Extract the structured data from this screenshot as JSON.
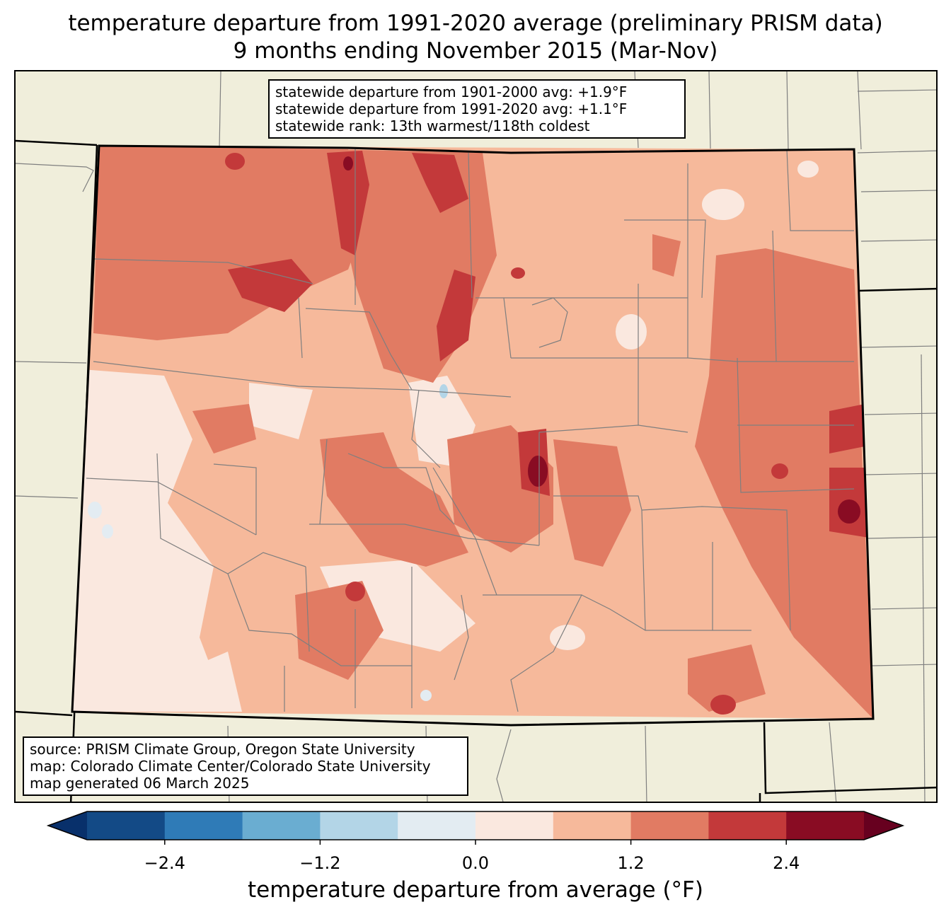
{
  "title": {
    "line1": "temperature departure from 1991-2020 average (preliminary PRISM data)",
    "line2": "9 months ending November 2015 (Mar-Nov)"
  },
  "stats_box": {
    "line1": "statewide departure from 1901-2000 avg: +1.9°F",
    "line2": "statewide departure from 1991-2020 avg: +1.1°F",
    "line3": "statewide rank: 13th warmest/118th coldest"
  },
  "source_box": {
    "line1": "source: PRISM Climate Group, Oregon State University",
    "line2": "map: Colorado Climate Center/Colorado State University",
    "line3": "map generated 06 March 2025"
  },
  "colorbar": {
    "label": "temperature departure from average (°F)",
    "ticks": [
      "−2.4",
      "−1.2",
      "0.0",
      "1.2",
      "2.4"
    ],
    "tick_values": [
      -2.4,
      -1.2,
      0.0,
      1.2,
      2.4
    ],
    "bounds": [
      -3.0,
      3.0
    ],
    "step": 0.6,
    "under_color": "#08306b",
    "over_color": "#67001f",
    "colors": [
      "#134a86",
      "#2f7bb7",
      "#6aadd1",
      "#b3d5e7",
      "#e3ecf2",
      "#fae8df",
      "#f6b99b",
      "#e17b63",
      "#c3393a",
      "#890c23"
    ]
  },
  "map_colors": {
    "background": "#f0eedb",
    "base_fill": "#f6b99b",
    "state_border": "#000000",
    "county_lines": "#7f7f7f"
  }
}
